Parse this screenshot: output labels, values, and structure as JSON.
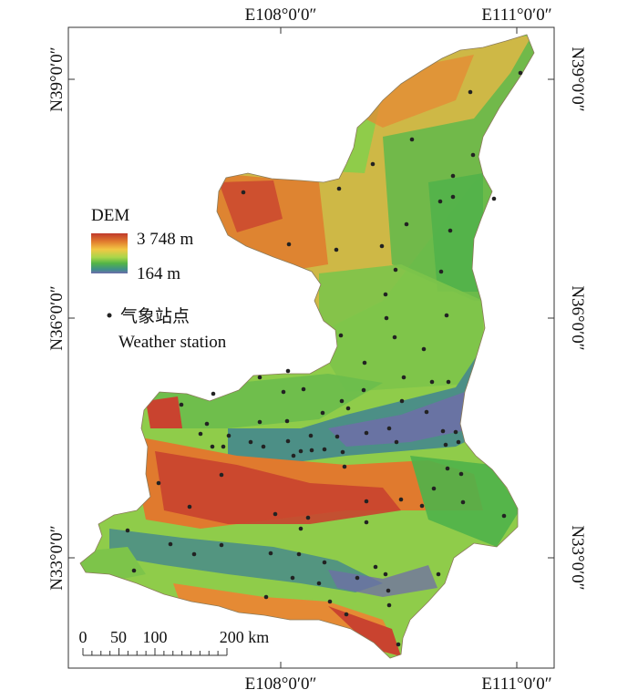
{
  "graticule": {
    "top_labels": [
      "E108°0′0″",
      "E111°0′0″"
    ],
    "bottom_labels": [
      "E108°0′0″",
      "E111°0′0″"
    ],
    "left_labels": [
      "N39°0′0″",
      "N36°0′0″",
      "N33°0′0″"
    ],
    "right_labels": [
      "N39°0′0″",
      "N36°0′0″",
      "N33°0′0″"
    ]
  },
  "legend": {
    "title": "DEM",
    "max_label": "3 748 m",
    "min_label": "164 m",
    "gradient_colors": [
      "#c0392b",
      "#e07a2e",
      "#f2c744",
      "#a8d64a",
      "#52b447",
      "#3f8f88",
      "#6e6cab"
    ],
    "station_label_cn": "气象站点",
    "station_label_en": "Weather station",
    "station_color": "#222222"
  },
  "scale_bar": {
    "labels": [
      "0",
      "50",
      "100",
      "200 km"
    ]
  },
  "map_colors": {
    "high": "#c9432f",
    "upper": "#e58a34",
    "mid": "#f0c64a",
    "lowmid": "#9fd04c",
    "low": "#4fb24a",
    "valley": "#4c8f86",
    "lowest": "#6f6ea8"
  }
}
